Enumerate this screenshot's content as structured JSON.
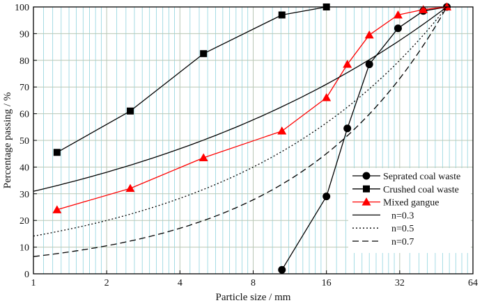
{
  "chart_data": {
    "type": "line",
    "xlabel": "Particle size / mm",
    "ylabel": "Percentage passing / %",
    "x_scale": "log2",
    "xlim": [
      1,
      64
    ],
    "ylim": [
      0,
      100
    ],
    "x_ticks": [
      "1",
      "2",
      "4",
      "8",
      "16",
      "32",
      "64"
    ],
    "x_tick_values": [
      1,
      2,
      4,
      8,
      16,
      32,
      64
    ],
    "y_ticks": [
      "0",
      "10",
      "20",
      "30",
      "40",
      "50",
      "60",
      "70",
      "80",
      "90",
      "100"
    ],
    "y_tick_values": [
      0,
      10,
      20,
      30,
      40,
      50,
      60,
      70,
      80,
      90,
      100
    ],
    "grid": true,
    "legend_position": "bottom-right",
    "series": [
      {
        "name": "Seprated coal waste",
        "marker": "circle",
        "color": "#000000",
        "line_style": "solid",
        "x": [
          10.5,
          16,
          19.5,
          24,
          31.5,
          40,
          50
        ],
        "y": [
          1.5,
          29,
          54.5,
          78.5,
          92,
          98.5,
          100
        ]
      },
      {
        "name": "Crushed coal waste",
        "marker": "square",
        "color": "#000000",
        "line_style": "solid",
        "x": [
          1.25,
          2.5,
          5,
          10.5,
          16
        ],
        "y": [
          45.5,
          61,
          82.5,
          97,
          100
        ]
      },
      {
        "name": "Mixed gangue",
        "marker": "triangle",
        "color": "#ff0000",
        "line_style": "solid",
        "x": [
          1.25,
          2.5,
          5,
          10.5,
          16,
          19.5,
          24,
          31.5,
          40,
          50
        ],
        "y": [
          24,
          32,
          43.5,
          53.5,
          66,
          78.5,
          89.5,
          97,
          99,
          100
        ]
      },
      {
        "name": "n=0.3",
        "marker": "none",
        "color": "#000000",
        "line_style": "solid",
        "formula": "100*(d/50)^0.3",
        "x": [
          1,
          2,
          4,
          8,
          16,
          32,
          50
        ],
        "y": [
          30.9,
          38.1,
          46.9,
          57.7,
          71.1,
          87.5,
          100
        ]
      },
      {
        "name": "n=0.5",
        "marker": "none",
        "color": "#000000",
        "line_style": "dotted",
        "formula": "100*(d/50)^0.5",
        "x": [
          1,
          2,
          4,
          8,
          16,
          32,
          50
        ],
        "y": [
          14.1,
          20,
          28.3,
          40,
          56.6,
          80,
          100
        ]
      },
      {
        "name": "n=0.7",
        "marker": "none",
        "color": "#000000",
        "line_style": "dashed",
        "formula": "100*(d/50)^0.7",
        "x": [
          1,
          2,
          4,
          8,
          16,
          32,
          50
        ],
        "y": [
          6.5,
          10.5,
          17.1,
          27.8,
          45.1,
          73.2,
          100
        ]
      }
    ]
  }
}
